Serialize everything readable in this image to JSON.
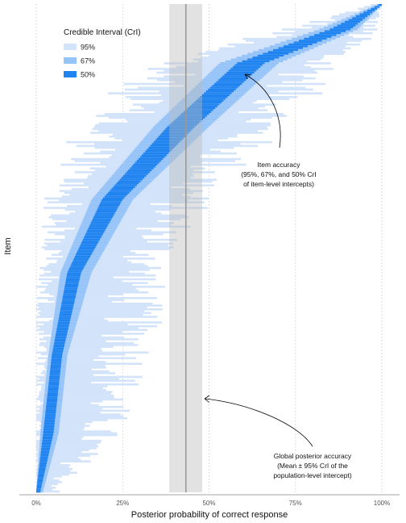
{
  "chart_data": {
    "type": "interval",
    "title": "",
    "xlabel": "Posterior probability of correct response",
    "ylabel": "Item",
    "xlim": [
      0,
      1
    ],
    "x_ticks": [
      0,
      0.25,
      0.5,
      0.75,
      1.0
    ],
    "x_tick_labels": [
      "0%",
      "25%",
      "50%",
      "75%",
      "100%"
    ],
    "grid": "vertical dotted",
    "legend": {
      "title": "Credible Interval (CrI)",
      "position": "top-left",
      "entries": [
        {
          "label": "95%",
          "color": "#d2e3fa"
        },
        {
          "label": "67%",
          "color": "#96c4f8"
        },
        {
          "label": "50%",
          "color": "#1f83f0"
        }
      ]
    },
    "global_estimate": {
      "mean": 0.433,
      "ci95": [
        0.385,
        0.48
      ],
      "line_color": "#999999",
      "band_color": "#bbbbbb"
    },
    "items_key_points": [
      {
        "rank": 0.0,
        "median": 0.995,
        "ci50": [
          0.99,
          1.0
        ],
        "ci67": [
          0.985,
          1.0
        ],
        "ci95": [
          0.97,
          1.0
        ]
      },
      {
        "rank": 0.05,
        "median": 0.88,
        "ci50": [
          0.85,
          0.91
        ],
        "ci67": [
          0.82,
          0.93
        ],
        "ci95": [
          0.76,
          0.96
        ]
      },
      {
        "rank": 0.12,
        "median": 0.62,
        "ci50": [
          0.58,
          0.66
        ],
        "ci67": [
          0.53,
          0.7
        ],
        "ci95": [
          0.4,
          0.82
        ]
      },
      {
        "rank": 0.25,
        "median": 0.42,
        "ci50": [
          0.38,
          0.46
        ],
        "ci67": [
          0.34,
          0.5
        ],
        "ci95": [
          0.2,
          0.64
        ]
      },
      {
        "rank": 0.4,
        "median": 0.22,
        "ci50": [
          0.19,
          0.25
        ],
        "ci67": [
          0.16,
          0.28
        ],
        "ci95": [
          0.08,
          0.42
        ]
      },
      {
        "rank": 0.55,
        "median": 0.11,
        "ci50": [
          0.09,
          0.13
        ],
        "ci67": [
          0.07,
          0.16
        ],
        "ci95": [
          0.03,
          0.3
        ]
      },
      {
        "rank": 0.72,
        "median": 0.06,
        "ci50": [
          0.045,
          0.075
        ],
        "ci67": [
          0.035,
          0.09
        ],
        "ci95": [
          0.012,
          0.26
        ]
      },
      {
        "rank": 0.88,
        "median": 0.035,
        "ci50": [
          0.02,
          0.05
        ],
        "ci67": [
          0.012,
          0.065
        ],
        "ci95": [
          0.003,
          0.18
        ]
      },
      {
        "rank": 1.0,
        "median": 0.005,
        "ci50": [
          0.0,
          0.012
        ],
        "ci67": [
          0.0,
          0.02
        ],
        "ci95": [
          0.0,
          0.05
        ]
      }
    ],
    "item_count": 260
  },
  "annotations": {
    "item": [
      "Item accuracy",
      "(95%, 67%, and 50% CrI",
      "of item-level intercepts)"
    ],
    "global": [
      "Global posterior accuracy",
      "(Mean ± 95% CrI of the",
      "population-level intercept)"
    ]
  }
}
